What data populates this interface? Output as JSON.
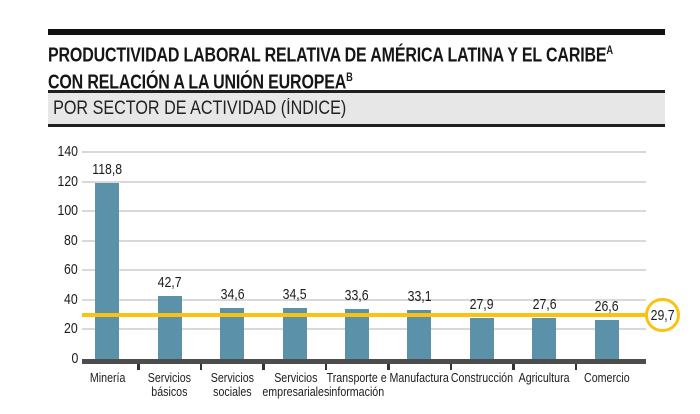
{
  "header": {
    "title_line1": "PRODUCTIVIDAD LABORAL RELATIVA DE AMÉRICA LATINA Y EL CARIBE",
    "title_note_a": "A",
    "title_line2": "CON RELACIÓN A LA UNIÓN EUROPEA",
    "title_note_b": "B",
    "subtitle": "POR SECTOR DE ACTIVIDAD (ÍNDICE)"
  },
  "colors": {
    "rule": "#111111",
    "band_bg": "#e7e7e7",
    "band_border": "#1f1f1f",
    "bar": "#5b92aa",
    "gridline": "#d9d9d9",
    "axis": "#4d4d4d",
    "tick": "#333333",
    "reference": "#fcc211",
    "text": "#1c1c1c"
  },
  "chart_data": {
    "type": "bar",
    "title": "POR SECTOR DE ACTIVIDAD (ÍNDICE)",
    "categories": [
      "Minería",
      "Servicios básicos",
      "Servicios sociales",
      "Servicios empresariales",
      "Transporte e información",
      "Manufactura",
      "Construcción",
      "Agricultura",
      "Comercio"
    ],
    "category_lines": [
      [
        "Minería"
      ],
      [
        "Servicios",
        "básicos"
      ],
      [
        "Servicios",
        "sociales"
      ],
      [
        "Servicios",
        "empresariales"
      ],
      [
        "Transporte e",
        "información"
      ],
      [
        "Manufactura"
      ],
      [
        "Construcción"
      ],
      [
        "Agricultura"
      ],
      [
        "Comercio"
      ]
    ],
    "values": [
      118.8,
      42.7,
      34.6,
      34.5,
      33.6,
      33.1,
      27.9,
      27.6,
      26.6
    ],
    "value_labels": [
      "118,8",
      "42,7",
      "34,6",
      "34,5",
      "33,6",
      "33,1",
      "27,9",
      "27,6",
      "26,6"
    ],
    "xlabel": "",
    "ylabel": "",
    "ylim": [
      0,
      140
    ],
    "yticks": [
      0,
      20,
      40,
      60,
      80,
      100,
      120,
      140
    ],
    "grid": true,
    "legend": false,
    "reference_line": {
      "value": 29.7,
      "label": "29,7"
    }
  }
}
